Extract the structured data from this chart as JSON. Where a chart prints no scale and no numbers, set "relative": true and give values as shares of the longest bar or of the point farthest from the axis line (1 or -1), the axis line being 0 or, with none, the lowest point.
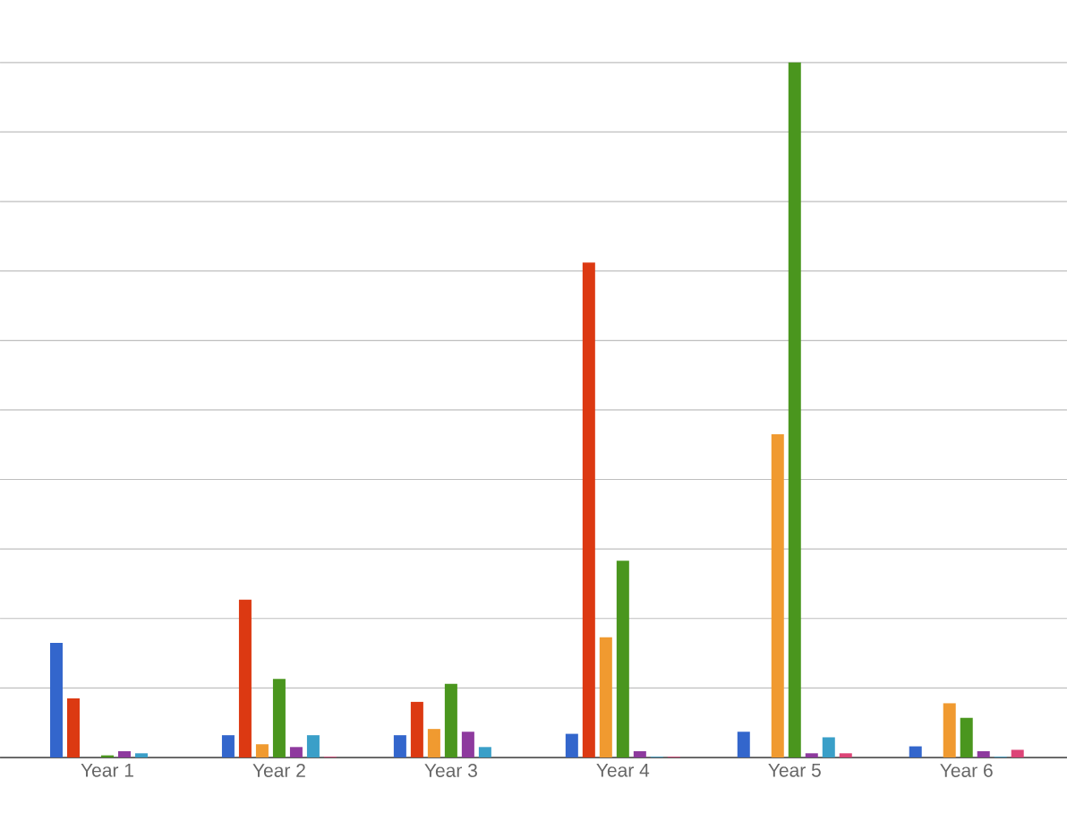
{
  "chart_data": {
    "type": "bar",
    "relative": true,
    "grid": "y",
    "categories": [
      "Year 1",
      "Year 2",
      "Year 3",
      "Year 4",
      "Year 5",
      "Year 6"
    ],
    "series": [
      {
        "color": "#3366cc",
        "values": [
          0.165,
          0.032,
          0.032,
          0.034,
          0.037,
          0.016
        ]
      },
      {
        "color": "#dc3912",
        "values": [
          0.085,
          0.227,
          0.08,
          0.712,
          0,
          0
        ]
      },
      {
        "color": "#f09a30",
        "values": [
          0,
          0.019,
          0.041,
          0.173,
          0.465,
          0.078
        ]
      },
      {
        "color": "#4a961e",
        "values": [
          0.003,
          0.113,
          0.106,
          0.283,
          1.0,
          0.057
        ]
      },
      {
        "color": "#8e3a9e",
        "values": [
          0.009,
          0.015,
          0.037,
          0.009,
          0.006,
          0.009
        ]
      },
      {
        "color": "#3a9fc8",
        "values": [
          0.006,
          0.032,
          0.015,
          0.001,
          0.029,
          0.001
        ]
      },
      {
        "color": "#dd4477",
        "values": [
          0,
          0.001,
          0,
          0.001,
          0.006,
          0.011
        ]
      }
    ]
  }
}
